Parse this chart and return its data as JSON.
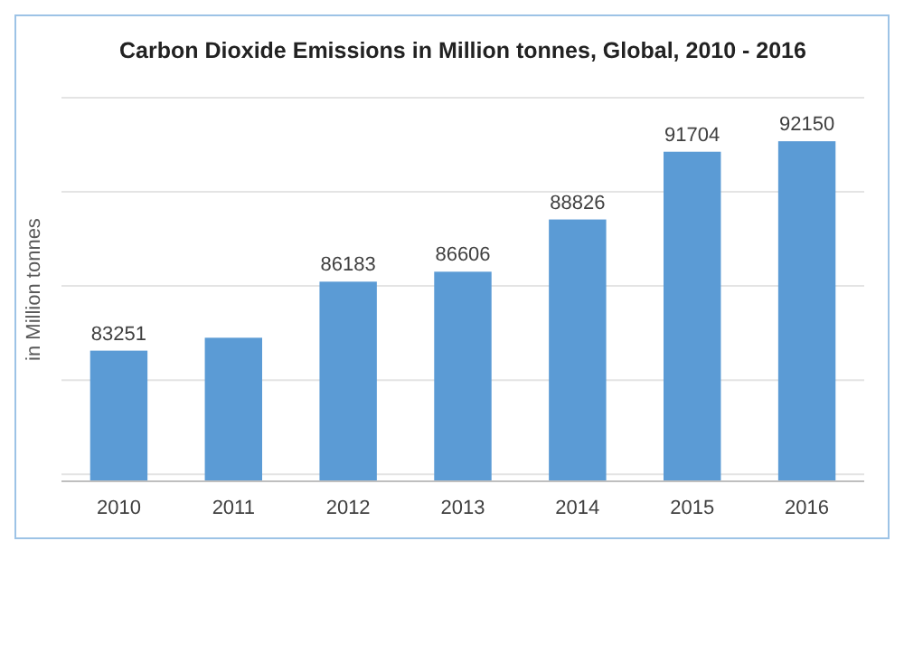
{
  "chart_data": {
    "type": "bar",
    "title": "Carbon Dioxide Emissions in Million tonnes, Global, 2010 - 2016",
    "ylabel": "in Million tonnes",
    "categories": [
      "2010",
      "2011",
      "2012",
      "2013",
      "2014",
      "2015",
      "2016"
    ],
    "values": [
      83251,
      83800,
      86183,
      86606,
      88826,
      91704,
      92150
    ],
    "value_labels": [
      "83251",
      null,
      "86183",
      "86606",
      "88826",
      "91704",
      "92150"
    ],
    "color": "#5b9bd5",
    "ylim": [
      77700,
      94000
    ],
    "yticks": [
      {
        "value": 78000,
        "label": null
      },
      {
        "value": 82000,
        "label": null
      },
      {
        "value": 86000,
        "label": null
      },
      {
        "value": 90000,
        "label": null
      },
      {
        "value": 94000,
        "label": null
      }
    ],
    "grid": "y",
    "tick_labels": "x"
  }
}
